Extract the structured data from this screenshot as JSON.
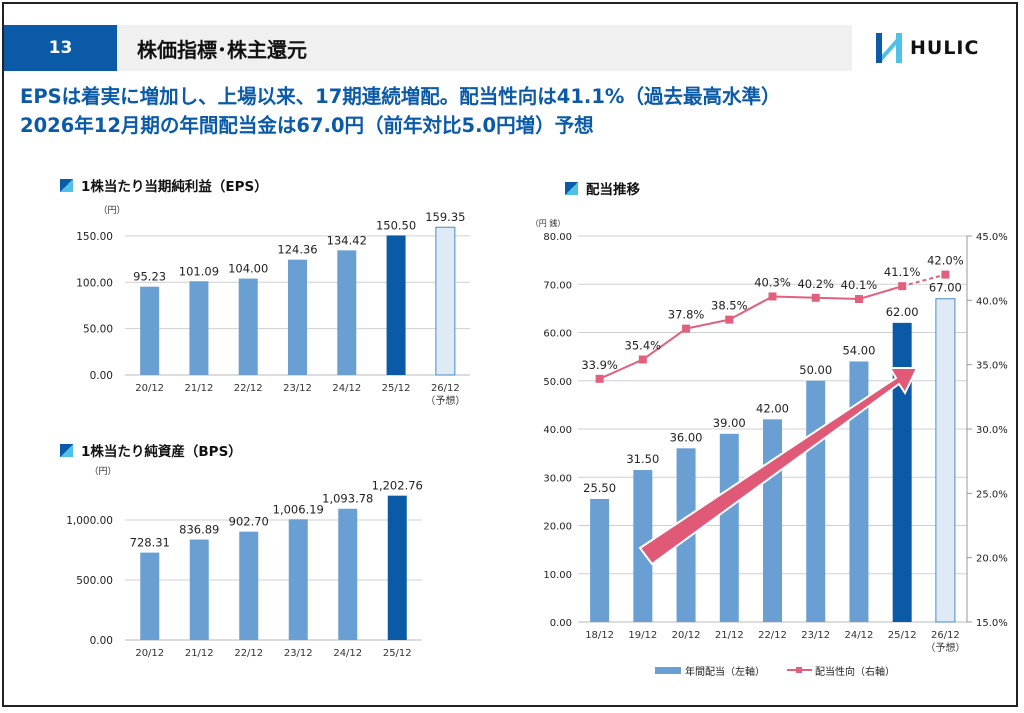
{
  "header": {
    "page_number": "13",
    "title": "株価指標･株主還元",
    "logo_text": "HULIC"
  },
  "headline": {
    "line1": "EPSは着実に増加し、上場以来、17期連続増配。配当性向は41.1%（過去最高水準）",
    "line2": "2026年12月期の年間配当金は67.0円（前年対比5.0円増）予想"
  },
  "colors": {
    "bar": "#6a9fd4",
    "bar_highlight": "#0a5aa8",
    "bar_forecast": "#deebf7",
    "line": "#e0607e",
    "arrow": "#e05a78",
    "title": "#0a5aa8"
  },
  "sections": {
    "eps_title": "1株当たり当期純利益（EPS）",
    "bps_title": "1株当たり純資産（BPS）",
    "dividend_title": "配当推移"
  },
  "chart_data": [
    {
      "type": "bar",
      "id": "eps",
      "title": "1株当たり当期純利益（EPS）",
      "ylabel": "（円）",
      "ylim": [
        0,
        165
      ],
      "yticks": [
        "0.00",
        "50.00",
        "100.00",
        "150.00"
      ],
      "categories": [
        "20/12",
        "21/12",
        "22/12",
        "23/12",
        "24/12",
        "25/12",
        "26/12\n（予想）"
      ],
      "values": [
        95.23,
        101.09,
        104.0,
        124.36,
        134.42,
        150.5,
        159.35
      ],
      "labels": [
        "95.23",
        "101.09",
        "104.00",
        "124.36",
        "134.42",
        "150.50",
        "159.35"
      ],
      "highlight_index": 5,
      "forecast_index": 6,
      "grid": true
    },
    {
      "type": "bar",
      "id": "bps",
      "title": "1株当たり純資産（BPS）",
      "ylabel": "（円）",
      "ylim": [
        0,
        1250
      ],
      "yticks": [
        "0.00",
        "500.00",
        "1,000.00"
      ],
      "categories": [
        "20/12",
        "21/12",
        "22/12",
        "23/12",
        "24/12",
        "25/12"
      ],
      "values": [
        728.31,
        836.89,
        902.7,
        1006.19,
        1093.78,
        1202.76
      ],
      "labels": [
        "728.31",
        "836.89",
        "902.70",
        "1,006.19",
        "1,093.78",
        "1,202.76"
      ],
      "highlight_index": 5,
      "forecast_index": null,
      "grid": true
    },
    {
      "type": "bar+line",
      "id": "dividend",
      "title": "配当推移",
      "ylabel": "（円 銭）",
      "ylim": [
        0,
        80
      ],
      "yticks": [
        "0.00",
        "10.00",
        "20.00",
        "30.00",
        "40.00",
        "50.00",
        "60.00",
        "70.00",
        "80.00"
      ],
      "y2lim": [
        15,
        45
      ],
      "y2ticks": [
        "15.0%",
        "20.0%",
        "25.0%",
        "30.0%",
        "35.0%",
        "40.0%",
        "45.0%"
      ],
      "categories": [
        "18/12",
        "19/12",
        "20/12",
        "21/12",
        "22/12",
        "23/12",
        "24/12",
        "25/12",
        "26/12\n（予想）"
      ],
      "series": [
        {
          "name": "年間配当（左軸）",
          "axis": "left",
          "values": [
            25.5,
            31.5,
            36.0,
            39.0,
            42.0,
            50.0,
            54.0,
            62.0,
            67.0
          ],
          "labels": [
            "25.50",
            "31.50",
            "36.00",
            "39.00",
            "42.00",
            "50.00",
            "54.00",
            "62.00",
            "67.00"
          ]
        },
        {
          "name": "配当性向（右軸）",
          "axis": "right",
          "values": [
            33.9,
            35.4,
            37.8,
            38.5,
            40.3,
            40.2,
            40.1,
            41.1,
            42.0
          ],
          "labels": [
            "33.9%",
            "35.4%",
            "37.8%",
            "38.5%",
            "40.3%",
            "40.2%",
            "40.1%",
            "41.1%",
            "42.0%"
          ]
        }
      ],
      "highlight_index": 7,
      "forecast_index": 8,
      "legend": "bottom",
      "grid": true,
      "annotation": "upward-trend-arrow"
    }
  ]
}
